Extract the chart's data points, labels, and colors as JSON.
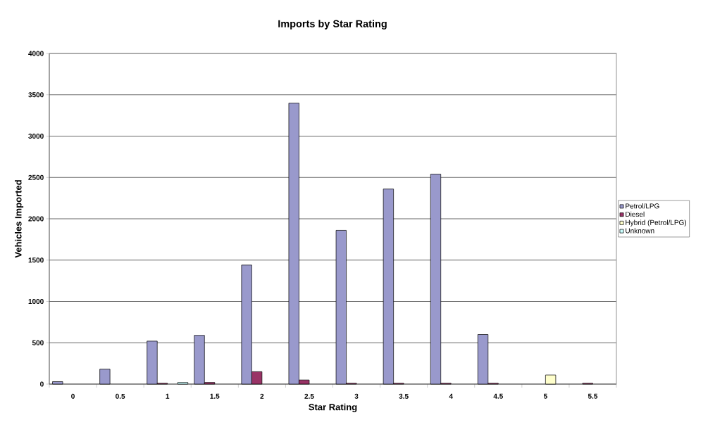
{
  "chart_data": {
    "type": "bar",
    "title": "Imports by Star Rating",
    "xlabel": "Star Rating",
    "ylabel": "Vehicles Imported",
    "categories": [
      "0",
      "0.5",
      "1",
      "1.5",
      "2",
      "2.5",
      "3",
      "3.5",
      "4",
      "4.5",
      "5",
      "5.5"
    ],
    "series": [
      {
        "name": "Petrol/LPG",
        "color": "#9999cc",
        "values": [
          30,
          180,
          520,
          590,
          1440,
          3400,
          1860,
          2360,
          2540,
          600,
          null,
          null
        ]
      },
      {
        "name": "Diesel",
        "color": "#993366",
        "values": [
          null,
          null,
          10,
          20,
          150,
          50,
          10,
          10,
          10,
          10,
          null,
          10
        ]
      },
      {
        "name": "Hybrid (Petrol/LPG)",
        "color": "#ffffcc",
        "values": [
          null,
          null,
          null,
          null,
          null,
          null,
          null,
          null,
          null,
          null,
          110,
          null
        ]
      },
      {
        "name": "Unknown",
        "color": "#ccffff",
        "values": [
          null,
          null,
          20,
          null,
          null,
          null,
          null,
          null,
          null,
          null,
          null,
          null
        ]
      }
    ],
    "ylim": [
      0,
      4000
    ],
    "yticks": [
      0,
      500,
      1000,
      1500,
      2000,
      2500,
      3000,
      3500,
      4000
    ],
    "grid": "y",
    "legend": "right"
  }
}
